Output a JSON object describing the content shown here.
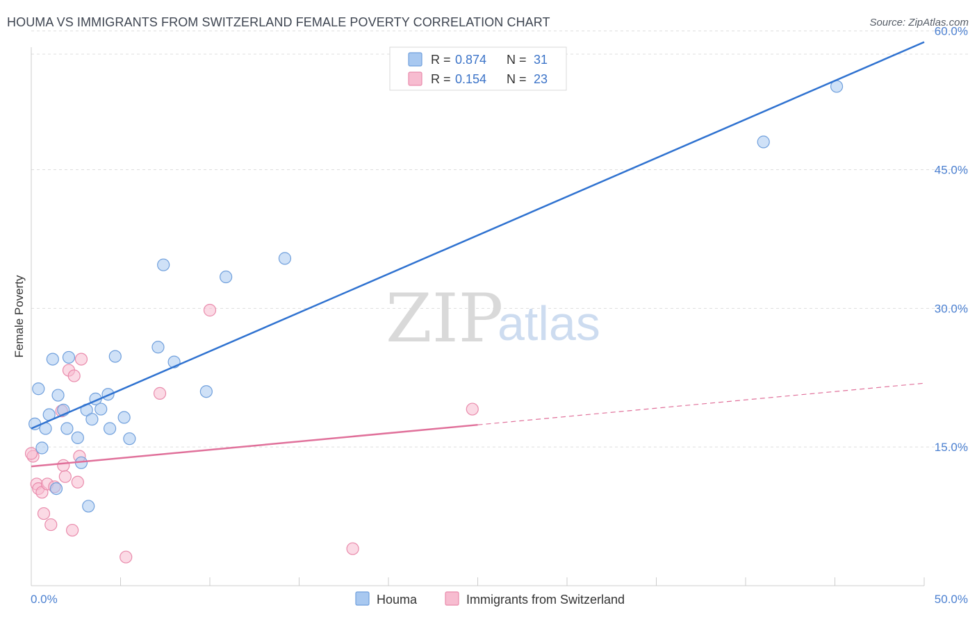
{
  "title": "HOUMA VS IMMIGRANTS FROM SWITZERLAND FEMALE POVERTY CORRELATION CHART",
  "source": "Source: ZipAtlas.com",
  "watermark": {
    "zip": "ZIP",
    "atlas": "atlas"
  },
  "colors": {
    "houma_fill": "#a8c8f0",
    "houma_stroke": "#6f9fdc",
    "houma_line": "#2f72d0",
    "swiss_fill": "#f7bcd0",
    "swiss_stroke": "#e98aab",
    "swiss_line": "#e0709a",
    "grid": "#dddddd",
    "axis_label": "#4a7fd0"
  },
  "legend": {
    "rows": [
      {
        "r_label": "R = ",
        "r_value": "0.874",
        "n_label": "N = ",
        "n_value": "31"
      },
      {
        "r_label": "R = ",
        "r_value": "0.154",
        "n_label": "N = ",
        "n_value": "23"
      }
    ]
  },
  "chart_data": {
    "type": "scatter",
    "ylabel": "Female Poverty",
    "xlim": [
      0,
      50
    ],
    "ylim": [
      0,
      62
    ],
    "x_tick_labels": {
      "left": "0.0%",
      "right": "50.0%"
    },
    "y_ticks": [
      {
        "value": 15,
        "label": "15.0%"
      },
      {
        "value": 30,
        "label": "30.0%"
      },
      {
        "value": 45,
        "label": "45.0%"
      },
      {
        "value": 60,
        "label": "60.0%"
      }
    ],
    "series": [
      {
        "name": "Houma",
        "points": [
          [
            0.2,
            17.5
          ],
          [
            0.4,
            21.3
          ],
          [
            0.6,
            14.9
          ],
          [
            0.8,
            17.0
          ],
          [
            1.0,
            18.5
          ],
          [
            1.2,
            24.5
          ],
          [
            1.4,
            10.5
          ],
          [
            1.5,
            20.6
          ],
          [
            1.8,
            19.0
          ],
          [
            2.0,
            17.0
          ],
          [
            2.1,
            24.7
          ],
          [
            2.6,
            16.0
          ],
          [
            2.8,
            13.3
          ],
          [
            3.1,
            19.0
          ],
          [
            3.2,
            8.6
          ],
          [
            3.4,
            18.0
          ],
          [
            3.6,
            20.2
          ],
          [
            3.9,
            19.1
          ],
          [
            4.3,
            20.7
          ],
          [
            4.4,
            17.0
          ],
          [
            4.7,
            24.8
          ],
          [
            5.2,
            18.2
          ],
          [
            5.5,
            15.9
          ],
          [
            7.1,
            25.8
          ],
          [
            7.4,
            34.7
          ],
          [
            8.0,
            24.2
          ],
          [
            9.8,
            21.0
          ],
          [
            10.9,
            33.4
          ],
          [
            14.2,
            35.4
          ],
          [
            41.0,
            48.0
          ],
          [
            45.1,
            54.0
          ]
        ],
        "trend": {
          "x0": 0,
          "y0": 17.0,
          "x1": 50,
          "y1": 58.8
        }
      },
      {
        "name": "Immigrants from Switzerland",
        "points": [
          [
            0.1,
            14.0
          ],
          [
            0.3,
            11.0
          ],
          [
            0.4,
            10.5
          ],
          [
            0.6,
            10.1
          ],
          [
            0.7,
            7.8
          ],
          [
            0.9,
            11.0
          ],
          [
            1.1,
            6.6
          ],
          [
            1.3,
            10.7
          ],
          [
            1.7,
            18.9
          ],
          [
            1.8,
            13.0
          ],
          [
            1.9,
            11.8
          ],
          [
            2.1,
            23.3
          ],
          [
            2.3,
            6.0
          ],
          [
            2.4,
            22.7
          ],
          [
            2.6,
            11.2
          ],
          [
            2.7,
            14.0
          ],
          [
            2.8,
            24.5
          ],
          [
            5.3,
            3.1
          ],
          [
            7.2,
            20.8
          ],
          [
            10.0,
            29.8
          ],
          [
            18.0,
            4.0
          ],
          [
            24.7,
            19.1
          ],
          [
            0.0,
            14.3
          ]
        ],
        "trend": {
          "x0": 0,
          "y0": 12.9,
          "x1": 25,
          "y1": 17.4
        },
        "trend_extension": {
          "x0": 25,
          "y0": 17.4,
          "x1": 50,
          "y1": 21.9
        }
      }
    ]
  }
}
